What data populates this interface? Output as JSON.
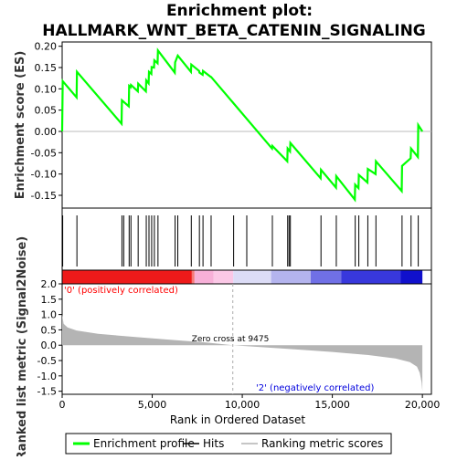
{
  "chart_data": {
    "type": "line",
    "title": "Enrichment plot:",
    "subtitle": "HALLMARK_WNT_BETA_CATENIN_SIGNALING",
    "es_panel": {
      "ylabel": "Enrichment score (ES)",
      "ylim": [
        -0.18,
        0.21
      ],
      "yticks": [
        -0.15,
        -0.1,
        -0.05,
        0.0,
        0.05,
        0.1,
        0.15,
        0.2
      ],
      "ytick_labels": [
        "-0.15",
        "-0.10",
        "-0.05",
        "0.00",
        "0.05",
        "0.10",
        "0.15",
        "0.20"
      ],
      "series": [
        {
          "name": "Enrichment profile",
          "color": "#00ff00",
          "x": [
            0,
            30,
            800,
            820,
            3300,
            3320,
            3700,
            3720,
            3800,
            3820,
            4200,
            4220,
            4650,
            4670,
            4800,
            4820,
            4950,
            4970,
            5100,
            5120,
            5300,
            5320,
            6250,
            6270,
            6400,
            6420,
            7150,
            7170,
            7600,
            7620,
            7800,
            7820,
            8250,
            8270,
            11650,
            11670,
            12500,
            12520,
            12650,
            12670,
            14350,
            14370,
            15200,
            15220,
            16250,
            16270,
            16450,
            16470,
            16950,
            16970,
            17400,
            17420,
            18850,
            18870,
            19350,
            19370,
            19750,
            19770,
            20000
          ],
          "y": [
            0.0,
            0.118,
            0.08,
            0.14,
            0.018,
            0.073,
            0.059,
            0.107,
            0.104,
            0.109,
            0.094,
            0.112,
            0.094,
            0.12,
            0.113,
            0.14,
            0.135,
            0.151,
            0.15,
            0.167,
            0.16,
            0.19,
            0.138,
            0.162,
            0.176,
            0.178,
            0.14,
            0.157,
            0.142,
            0.138,
            0.133,
            0.142,
            0.128,
            0.128,
            -0.04,
            -0.034,
            -0.07,
            -0.04,
            -0.047,
            -0.027,
            -0.11,
            -0.09,
            -0.132,
            -0.105,
            -0.16,
            -0.125,
            -0.133,
            -0.102,
            -0.12,
            -0.088,
            -0.1,
            -0.07,
            -0.14,
            -0.081,
            -0.063,
            -0.04,
            -0.06,
            0.015,
            0.0
          ]
        }
      ]
    },
    "hits": {
      "name": "Hits",
      "x": [
        30,
        820,
        3320,
        3420,
        3720,
        3820,
        4220,
        4670,
        4820,
        4970,
        5120,
        5320,
        6270,
        6420,
        7170,
        7620,
        7820,
        8270,
        9520,
        10250,
        11670,
        12520,
        12600,
        12670,
        14370,
        15220,
        16270,
        16470,
        16970,
        17420,
        18870,
        19370,
        19770
      ]
    },
    "rank_bar": {
      "label_pos": "'0' (positively correlated)",
      "label_neg": "'2' (negatively correlated)",
      "segments": [
        {
          "from": 0,
          "to": 7200,
          "color": "#ee1a1a"
        },
        {
          "from": 7200,
          "to": 7350,
          "color": "#f57a7a"
        },
        {
          "from": 7350,
          "to": 8400,
          "color": "#f7b0d8"
        },
        {
          "from": 8400,
          "to": 9500,
          "color": "#fbc8e6"
        },
        {
          "from": 9500,
          "to": 11600,
          "color": "#dcdcf6"
        },
        {
          "from": 11600,
          "to": 13800,
          "color": "#b4b4ee"
        },
        {
          "from": 13800,
          "to": 15500,
          "color": "#7070e6"
        },
        {
          "from": 15500,
          "to": 18800,
          "color": "#3838dc"
        },
        {
          "from": 18800,
          "to": 20000,
          "color": "#1010cc"
        }
      ]
    },
    "metric_panel": {
      "ylabel": "Ranked list metric (Signal2Noise)",
      "ylim": [
        -1.6,
        2.0
      ],
      "yticks": [
        -1.5,
        -1.0,
        -0.5,
        0.0,
        0.5,
        1.0,
        1.5,
        2.0
      ],
      "ytick_labels": [
        "-1.5",
        "-1.0",
        "-0.5",
        "0.0",
        "0.5",
        "1.0",
        "1.5",
        "2.0"
      ],
      "fill_color": "#b4b4b4",
      "profile_x": [
        0,
        80,
        300,
        800,
        2000,
        4000,
        6000,
        8000,
        9475,
        11000,
        13000,
        15000,
        17000,
        18500,
        19300,
        19700,
        19850,
        19950,
        20000
      ],
      "profile_y": [
        1.0,
        0.7,
        0.58,
        0.48,
        0.37,
        0.27,
        0.18,
        0.09,
        0.0,
        -0.06,
        -0.14,
        -0.22,
        -0.32,
        -0.43,
        -0.55,
        -0.7,
        -0.9,
        -1.2,
        -1.5
      ],
      "zero_cross_label": "Zero cross at 9475",
      "zero_cross_x": 9475
    },
    "xaxis": {
      "label": "Rank in Ordered Dataset",
      "xlim": [
        0,
        20500
      ],
      "ticks": [
        0,
        5000,
        10000,
        15000,
        20000
      ],
      "tick_labels": [
        "0",
        "5,000",
        "10,000",
        "15,000",
        "20,000"
      ]
    },
    "legend": {
      "position": "bottom",
      "items": [
        {
          "label": "Enrichment profile",
          "color": "#00ff00",
          "kind": "line"
        },
        {
          "label": "Hits",
          "color": "#000000",
          "kind": "line"
        },
        {
          "label": "Ranking metric scores",
          "color": "#b4b4b4",
          "kind": "line"
        }
      ]
    }
  }
}
